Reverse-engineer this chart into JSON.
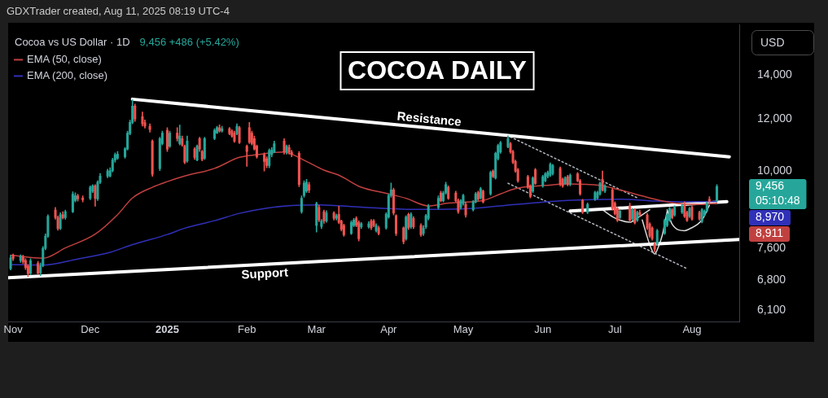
{
  "chart_data": {
    "type": "candlestick",
    "title": "COCOA DAILY",
    "subtitle": "Cocoa vs US Dollar · 1D",
    "ylabel": "USD",
    "x": [
      "2024-10-31",
      "2024-11-01",
      "2024-11-04",
      "2024-11-05",
      "2024-11-06",
      "2024-11-07",
      "2024-11-08",
      "2024-11-11",
      "2024-11-12",
      "2024-11-13",
      "2024-11-14",
      "2024-11-15",
      "2024-11-18",
      "2024-11-19",
      "2024-11-20",
      "2024-11-21",
      "2024-11-22",
      "2024-11-25",
      "2024-11-26",
      "2024-11-27",
      "2024-11-29",
      "2024-12-02",
      "2024-12-03",
      "2024-12-04",
      "2024-12-05",
      "2024-12-06",
      "2024-12-09",
      "2024-12-10",
      "2024-12-11",
      "2024-12-12",
      "2024-12-13",
      "2024-12-16",
      "2024-12-17",
      "2024-12-18",
      "2024-12-19",
      "2024-12-20",
      "2024-12-23",
      "2024-12-24",
      "2024-12-26",
      "2024-12-27",
      "2024-12-30",
      "2024-12-31",
      "2025-01-02",
      "2025-01-03",
      "2025-01-06",
      "2025-01-07",
      "2025-01-08",
      "2025-01-09",
      "2025-01-10",
      "2025-01-13",
      "2025-01-14",
      "2025-01-15",
      "2025-01-16",
      "2025-01-17",
      "2025-01-21",
      "2025-01-22",
      "2025-01-23",
      "2025-01-24",
      "2025-01-27",
      "2025-01-28",
      "2025-01-29",
      "2025-01-30",
      "2025-01-31",
      "2025-02-03",
      "2025-02-04",
      "2025-02-05",
      "2025-02-06",
      "2025-02-07",
      "2025-02-10",
      "2025-02-11",
      "2025-02-12",
      "2025-02-13",
      "2025-02-14",
      "2025-02-18",
      "2025-02-19",
      "2025-02-20",
      "2025-02-21",
      "2025-02-24",
      "2025-02-25",
      "2025-02-26",
      "2025-02-27",
      "2025-02-28",
      "2025-03-03",
      "2025-03-04",
      "2025-03-05",
      "2025-03-06",
      "2025-03-07",
      "2025-03-10",
      "2025-03-11",
      "2025-03-12",
      "2025-03-13",
      "2025-03-14",
      "2025-03-17",
      "2025-03-18",
      "2025-03-19",
      "2025-03-20",
      "2025-03-21",
      "2025-03-24",
      "2025-03-25",
      "2025-03-26",
      "2025-03-27",
      "2025-03-28",
      "2025-03-31",
      "2025-04-01",
      "2025-04-02",
      "2025-04-03",
      "2025-04-04",
      "2025-04-07",
      "2025-04-08",
      "2025-04-09",
      "2025-04-10",
      "2025-04-11",
      "2025-04-14",
      "2025-04-15",
      "2025-04-16",
      "2025-04-17",
      "2025-04-21",
      "2025-04-22",
      "2025-04-23",
      "2025-04-24",
      "2025-04-25",
      "2025-04-28",
      "2025-04-29",
      "2025-04-30",
      "2025-05-01",
      "2025-05-02",
      "2025-05-05",
      "2025-05-06",
      "2025-05-07",
      "2025-05-08",
      "2025-05-09",
      "2025-05-12",
      "2025-05-13",
      "2025-05-14",
      "2025-05-15",
      "2025-05-16",
      "2025-05-19",
      "2025-05-20",
      "2025-05-21",
      "2025-05-22",
      "2025-05-23",
      "2025-05-27",
      "2025-05-28",
      "2025-05-29",
      "2025-05-30",
      "2025-06-02",
      "2025-06-03",
      "2025-06-04",
      "2025-06-05",
      "2025-06-06",
      "2025-06-09",
      "2025-06-10",
      "2025-06-11",
      "2025-06-12",
      "2025-06-13",
      "2025-06-16",
      "2025-06-17",
      "2025-06-18",
      "2025-06-20",
      "2025-06-23",
      "2025-06-24",
      "2025-06-25",
      "2025-06-26",
      "2025-06-27",
      "2025-06-30",
      "2025-07-01",
      "2025-07-02",
      "2025-07-03",
      "2025-07-07",
      "2025-07-08",
      "2025-07-09",
      "2025-07-10",
      "2025-07-11",
      "2025-07-14",
      "2025-07-15",
      "2025-07-16",
      "2025-07-17",
      "2025-07-18",
      "2025-07-21",
      "2025-07-22",
      "2025-07-23",
      "2025-07-24",
      "2025-07-25",
      "2025-07-28",
      "2025-07-29",
      "2025-07-30",
      "2025-07-31",
      "2025-08-01",
      "2025-08-04",
      "2025-08-05",
      "2025-08-06",
      "2025-08-07",
      "2025-08-08",
      "2025-08-11"
    ],
    "ohlc": [
      [
        7075,
        7420,
        7040,
        7350
      ],
      [
        7420,
        7450,
        7280,
        7330
      ],
      [
        7280,
        7430,
        7230,
        7400
      ],
      [
        7380,
        7420,
        7200,
        7250
      ],
      [
        7280,
        7330,
        7050,
        7100
      ],
      [
        7140,
        7180,
        6875,
        6950
      ],
      [
        6960,
        7330,
        6920,
        7280
      ],
      [
        7210,
        7260,
        6930,
        6960
      ],
      [
        6970,
        7220,
        6900,
        7140
      ],
      [
        7150,
        7650,
        7120,
        7600
      ],
      [
        7600,
        8000,
        7560,
        7935
      ],
      [
        7935,
        8560,
        7900,
        8510
      ],
      [
        8700,
        8780,
        8420,
        8470
      ],
      [
        8470,
        8520,
        8100,
        8150
      ],
      [
        8150,
        8620,
        8120,
        8560
      ],
      [
        8560,
        8650,
        8430,
        8470
      ],
      [
        8470,
        8700,
        8420,
        8650
      ],
      [
        8650,
        9280,
        8620,
        9200
      ],
      [
        9000,
        9250,
        8950,
        9150
      ],
      [
        9150,
        9200,
        8980,
        9050
      ],
      [
        9080,
        9150,
        8950,
        9020
      ],
      [
        9070,
        9480,
        9020,
        9430
      ],
      [
        9300,
        9520,
        9250,
        9480
      ],
      [
        9475,
        9520,
        8820,
        9070
      ],
      [
        9050,
        9650,
        9000,
        9600
      ],
      [
        9600,
        9900,
        9550,
        9810
      ],
      [
        9810,
        10050,
        9750,
        9985
      ],
      [
        9810,
        10100,
        9780,
        10000
      ],
      [
        10000,
        10450,
        9950,
        10380
      ],
      [
        10380,
        10650,
        10300,
        10580
      ],
      [
        10450,
        10700,
        10400,
        10600
      ],
      [
        10500,
        10850,
        10450,
        10800
      ],
      [
        10790,
        11500,
        10750,
        11420
      ],
      [
        11400,
        11950,
        11350,
        11860
      ],
      [
        11860,
        12840,
        11800,
        12560
      ],
      [
        12560,
        12650,
        11900,
        12000
      ],
      [
        12100,
        12300,
        11700,
        11800
      ],
      [
        11850,
        11960,
        11620,
        11700
      ],
      [
        11700,
        11800,
        11450,
        11560
      ],
      [
        11100,
        11150,
        9800,
        9870
      ],
      [
        10070,
        11250,
        10000,
        11200
      ],
      [
        11000,
        11500,
        10950,
        11420
      ],
      [
        11530,
        11640,
        10700,
        10790
      ],
      [
        10900,
        11500,
        10850,
        11420
      ],
      [
        11420,
        11640,
        11100,
        11200
      ],
      [
        11000,
        11750,
        10950,
        11300
      ],
      [
        11200,
        11300,
        10900,
        10950
      ],
      [
        10900,
        10950,
        10250,
        10300
      ],
      [
        10350,
        11300,
        10300,
        11100
      ],
      [
        10790,
        10850,
        10400,
        10480
      ],
      [
        10380,
        10950,
        10350,
        10900
      ],
      [
        11200,
        11250,
        10700,
        10790
      ],
      [
        10700,
        10750,
        10350,
        10400
      ],
      [
        10450,
        11250,
        10400,
        11200
      ],
      [
        11200,
        11600,
        11150,
        11530
      ],
      [
        11420,
        11700,
        11400,
        11640
      ],
      [
        11640,
        11760,
        11450,
        11500
      ],
      [
        11500,
        11700,
        11450,
        11600
      ],
      [
        11600,
        11650,
        11350,
        11400
      ],
      [
        11500,
        11560,
        11250,
        11300
      ],
      [
        11420,
        11500,
        11050,
        11100
      ],
      [
        11400,
        11800,
        11350,
        11700
      ],
      [
        11640,
        11700,
        11000,
        11040
      ],
      [
        10900,
        10950,
        10150,
        10700
      ],
      [
        11640,
        11860,
        11000,
        11060
      ],
      [
        11420,
        11500,
        10950,
        11000
      ],
      [
        11200,
        11300,
        10750,
        10790
      ],
      [
        10900,
        10950,
        10450,
        10500
      ],
      [
        10580,
        10650,
        9985,
        10330
      ],
      [
        10430,
        10500,
        10100,
        10180
      ],
      [
        10180,
        10800,
        10100,
        10740
      ],
      [
        10580,
        10850,
        10500,
        10760
      ],
      [
        10680,
        11100,
        10650,
        11000
      ],
      [
        11100,
        11200,
        10600,
        10680
      ],
      [
        10680,
        10950,
        10600,
        10900
      ],
      [
        10850,
        10950,
        10600,
        10680
      ],
      [
        10680,
        10750,
        10500,
        10580
      ],
      [
        10630,
        10700,
        9450,
        9520
      ],
      [
        8650,
        9150,
        8600,
        9070
      ],
      [
        9160,
        9650,
        9100,
        9570
      ],
      [
        9300,
        9700,
        9250,
        9600
      ],
      [
        9520,
        9600,
        9250,
        9330
      ],
      [
        8240,
        8950,
        8050,
        8900
      ],
      [
        8780,
        8850,
        8350,
        8400
      ],
      [
        8210,
        8420,
        8150,
        8370
      ],
      [
        8650,
        8700,
        8300,
        8370
      ],
      [
        8370,
        8680,
        8330,
        8610
      ],
      [
        8610,
        8650,
        8400,
        8450
      ],
      [
        8450,
        8580,
        8400,
        8530
      ],
      [
        8570,
        8820,
        8290,
        8330
      ],
      [
        8370,
        8400,
        8080,
        8130
      ],
      [
        8240,
        8280,
        7930,
        7975
      ],
      [
        8010,
        8380,
        7980,
        8330
      ],
      [
        8240,
        8450,
        8200,
        8400
      ],
      [
        8450,
        8500,
        8200,
        8240
      ],
      [
        8330,
        8380,
        7800,
        7860
      ],
      [
        8200,
        8330,
        8150,
        8290
      ],
      [
        8200,
        8350,
        8160,
        8290
      ],
      [
        8370,
        8420,
        8120,
        8170
      ],
      [
        8370,
        8420,
        8200,
        8240
      ],
      [
        8090,
        8290,
        8050,
        8240
      ],
      [
        8170,
        8220,
        7970,
        8010
      ],
      [
        8170,
        8620,
        8130,
        8570
      ],
      [
        8490,
        9200,
        8450,
        9160
      ],
      [
        9160,
        9570,
        9100,
        9340
      ],
      [
        9340,
        9400,
        8550,
        8610
      ],
      [
        8530,
        8560,
        7950,
        8010
      ],
      [
        8170,
        8200,
        7720,
        7780
      ],
      [
        7860,
        8530,
        7820,
        8490
      ],
      [
        8570,
        8610,
        8120,
        8170
      ],
      [
        8200,
        8620,
        8150,
        8570
      ],
      [
        8450,
        8500,
        8150,
        8200
      ],
      [
        8240,
        8290,
        7930,
        7975
      ],
      [
        8010,
        8240,
        7950,
        8170
      ],
      [
        8200,
        8570,
        8150,
        8530
      ],
      [
        8450,
        8880,
        8400,
        8820
      ],
      [
        8780,
        9150,
        8730,
        9070
      ],
      [
        9245,
        9300,
        8950,
        8990
      ],
      [
        8990,
        9300,
        8950,
        9245
      ],
      [
        9245,
        9600,
        9200,
        9520
      ],
      [
        9430,
        9480,
        9030,
        9070
      ],
      [
        9245,
        9300,
        8950,
        8990
      ],
      [
        8990,
        9050,
        8600,
        8650
      ],
      [
        8780,
        9030,
        8730,
        8990
      ],
      [
        8900,
        9200,
        8850,
        9160
      ],
      [
        8875,
        8950,
        8480,
        8550
      ],
      [
        8710,
        9000,
        8670,
        8955
      ],
      [
        8955,
        9260,
        8920,
        9210
      ],
      [
        9255,
        9300,
        9000,
        9040
      ],
      [
        9080,
        9430,
        9040,
        9385
      ],
      [
        9300,
        9340,
        8920,
        8955
      ],
      [
        9210,
        9985,
        9170,
        9935
      ],
      [
        9985,
        10030,
        9750,
        9790
      ],
      [
        9745,
        10680,
        9700,
        10630
      ],
      [
        10430,
        10980,
        10380,
        10930
      ],
      [
        10680,
        11090,
        10630,
        11040
      ],
      [
        10880,
        11310,
        10840,
        11200
      ],
      [
        11000,
        11050,
        10630,
        10680
      ],
      [
        10700,
        10750,
        10250,
        10300
      ],
      [
        10330,
        10380,
        9940,
        9985
      ],
      [
        10030,
        10080,
        9600,
        9650
      ],
      [
        9790,
        9840,
        9385,
        9430
      ],
      [
        9475,
        9520,
        9080,
        9125
      ],
      [
        9300,
        9790,
        9255,
        9745
      ],
      [
        10030,
        10080,
        9520,
        9560
      ],
      [
        9475,
        9840,
        9430,
        9790
      ],
      [
        9650,
        9935,
        9610,
        9890
      ],
      [
        9790,
        9985,
        9745,
        9935
      ],
      [
        9840,
        10280,
        9790,
        10230
      ],
      [
        9890,
        10230,
        9840,
        10180
      ],
      [
        10080,
        10130,
        9475,
        9520
      ],
      [
        9700,
        9745,
        9430,
        9475
      ],
      [
        9560,
        9790,
        9520,
        9745
      ],
      [
        9790,
        9840,
        9475,
        9520
      ],
      [
        9520,
        9890,
        9475,
        9840
      ],
      [
        9890,
        9935,
        9610,
        9650
      ],
      [
        9650,
        9700,
        9170,
        9210
      ],
      [
        9000,
        9040,
        8590,
        8630
      ],
      [
        8630,
        8920,
        8590,
        8875
      ],
      [
        9040,
        9300,
        9000,
        9255
      ],
      [
        9080,
        9300,
        9040,
        9255
      ],
      [
        9210,
        9610,
        9170,
        9560
      ],
      [
        9700,
        9985,
        9300,
        9340
      ],
      [
        9300,
        9520,
        9250,
        9475
      ],
      [
        9340,
        9400,
        8700,
        8750
      ],
      [
        8915,
        8960,
        8550,
        8590
      ],
      [
        8750,
        8790,
        8350,
        8390
      ],
      [
        8470,
        8710,
        8430,
        8670
      ],
      [
        8830,
        8915,
        8350,
        8390
      ],
      [
        8430,
        8750,
        8390,
        8710
      ],
      [
        8710,
        8750,
        8280,
        8315
      ],
      [
        8390,
        8670,
        8355,
        8630
      ],
      [
        8630,
        8700,
        8500,
        8550
      ],
      [
        8550,
        8600,
        8120,
        8165
      ],
      [
        8280,
        8320,
        7900,
        7940
      ],
      [
        8165,
        8200,
        7820,
        7865
      ],
      [
        7720,
        7760,
        7505,
        7575
      ],
      [
        7720,
        8130,
        7680,
        8090
      ],
      [
        8015,
        8430,
        7980,
        8390
      ],
      [
        8240,
        8590,
        8200,
        8550
      ],
      [
        8390,
        8790,
        8355,
        8750
      ],
      [
        8710,
        8750,
        8430,
        8470
      ],
      [
        8550,
        8830,
        8510,
        8790
      ],
      [
        8630,
        8875,
        8590,
        8830
      ],
      [
        8875,
        8955,
        8470,
        8510
      ],
      [
        8630,
        8670,
        8355,
        8390
      ],
      [
        8510,
        8790,
        8470,
        8750
      ],
      [
        8790,
        8830,
        8390,
        8430
      ],
      [
        8630,
        8670,
        8390,
        8430
      ],
      [
        8355,
        8750,
        8315,
        8710
      ],
      [
        8550,
        8710,
        8510,
        8670
      ],
      [
        8670,
        8955,
        8630,
        8915
      ],
      [
        9040,
        9125,
        8915,
        8970
      ],
      [
        8990,
        9520,
        8960,
        9456
      ]
    ],
    "colors": [
      "#26a69a",
      "#ef5350",
      "#26a69a",
      "#ef5350",
      "#ef5350",
      "#ef5350",
      "#26a69a",
      "#ef5350",
      "#26a69a",
      "#26a69a",
      "#26a69a",
      "#26a69a",
      "#ef5350",
      "#ef5350",
      "#26a69a",
      "#ef5350",
      "#26a69a",
      "#26a69a",
      "#26a69a",
      "#ef5350",
      "#ef5350",
      "#26a69a",
      "#26a69a",
      "#ef5350",
      "#26a69a",
      "#26a69a",
      "#26a69a",
      "#26a69a",
      "#26a69a",
      "#26a69a",
      "#26a69a",
      "#26a69a",
      "#26a69a",
      "#26a69a",
      "#26a69a",
      "#ef5350",
      "#ef5350",
      "#ef5350",
      "#ef5350",
      "#ef5350",
      "#26a69a",
      "#26a69a",
      "#ef5350",
      "#26a69a",
      "#ef5350",
      "#26a69a",
      "#ef5350",
      "#ef5350",
      "#26a69a",
      "#ef5350",
      "#26a69a",
      "#ef5350",
      "#ef5350",
      "#26a69a",
      "#26a69a",
      "#26a69a",
      "#ef5350",
      "#26a69a",
      "#ef5350",
      "#ef5350",
      "#ef5350",
      "#26a69a",
      "#ef5350",
      "#ef5350",
      "#ef5350",
      "#ef5350",
      "#ef5350",
      "#ef5350",
      "#ef5350",
      "#ef5350",
      "#26a69a",
      "#26a69a",
      "#26a69a",
      "#ef5350",
      "#26a69a",
      "#ef5350",
      "#ef5350",
      "#ef5350",
      "#26a69a",
      "#26a69a",
      "#26a69a",
      "#ef5350",
      "#26a69a",
      "#ef5350",
      "#26a69a",
      "#ef5350",
      "#26a69a",
      "#ef5350",
      "#26a69a",
      "#ef5350",
      "#ef5350",
      "#ef5350",
      "#26a69a",
      "#26a69a",
      "#ef5350",
      "#ef5350",
      "#26a69a",
      "#26a69a",
      "#ef5350",
      "#ef5350",
      "#26a69a",
      "#ef5350",
      "#26a69a",
      "#26a69a",
      "#26a69a",
      "#ef5350",
      "#ef5350",
      "#ef5350",
      "#26a69a",
      "#ef5350",
      "#26a69a",
      "#ef5350",
      "#ef5350",
      "#26a69a",
      "#26a69a",
      "#26a69a",
      "#26a69a",
      "#ef5350",
      "#26a69a",
      "#26a69a",
      "#ef5350",
      "#ef5350",
      "#ef5350",
      "#26a69a",
      "#26a69a",
      "#ef5350",
      "#26a69a",
      "#26a69a",
      "#ef5350",
      "#26a69a",
      "#ef5350",
      "#26a69a",
      "#ef5350",
      "#26a69a",
      "#26a69a",
      "#26a69a",
      "#26a69a",
      "#ef5350",
      "#ef5350",
      "#ef5350",
      "#ef5350",
      "#ef5350",
      "#ef5350",
      "#26a69a",
      "#ef5350",
      "#26a69a",
      "#26a69a",
      "#26a69a",
      "#26a69a",
      "#26a69a",
      "#ef5350",
      "#ef5350",
      "#26a69a",
      "#ef5350",
      "#26a69a",
      "#ef5350",
      "#ef5350",
      "#ef5350",
      "#26a69a",
      "#26a69a",
      "#26a69a",
      "#26a69a",
      "#ef5350",
      "#26a69a",
      "#ef5350",
      "#ef5350",
      "#ef5350",
      "#26a69a",
      "#ef5350",
      "#26a69a",
      "#ef5350",
      "#26a69a",
      "#ef5350",
      "#ef5350",
      "#ef5350",
      "#ef5350",
      "#ef5350",
      "#26a69a",
      "#26a69a",
      "#26a69a",
      "#26a69a",
      "#ef5350",
      "#26a69a",
      "#26a69a",
      "#ef5350",
      "#ef5350",
      "#26a69a",
      "#ef5350",
      "#ef5350",
      "#26a69a",
      "#26a69a",
      "#26a69a",
      "#ef5350",
      "#26a69a"
    ],
    "value_labels": [
      null,
      null,
      null,
      null,
      null,
      null,
      null,
      null,
      null,
      null,
      null,
      null,
      null,
      null,
      null,
      null,
      null,
      null,
      null,
      null,
      null,
      null,
      null,
      null,
      null,
      null,
      null,
      null,
      null,
      null,
      null,
      null,
      null,
      null,
      null,
      null,
      null,
      null,
      null,
      null,
      null,
      null,
      null,
      null,
      null,
      null,
      null,
      null,
      null,
      null,
      null,
      null,
      null,
      null,
      null,
      null,
      null,
      null,
      null,
      null,
      null,
      null,
      null,
      null,
      null,
      null,
      null,
      null,
      null,
      null,
      null,
      null,
      null,
      null,
      null,
      null,
      null,
      null,
      null,
      null,
      null,
      null,
      null,
      null,
      null,
      null,
      null,
      null,
      null,
      null,
      null,
      null,
      null,
      null,
      null,
      null,
      null,
      null,
      null,
      null,
      null,
      null,
      null,
      null,
      null,
      null,
      null,
      null,
      null,
      null,
      null,
      null,
      null,
      null,
      null,
      null,
      null,
      null,
      null,
      null,
      null,
      null,
      null,
      null,
      null,
      null,
      null,
      null,
      null,
      null,
      null,
      null,
      null,
      null,
      null,
      null,
      null,
      null,
      null,
      null,
      null,
      null,
      null,
      null,
      null,
      null,
      null,
      null,
      null,
      null,
      null,
      null,
      null,
      null,
      null,
      null,
      null,
      null,
      null,
      null,
      null,
      null,
      null,
      null,
      null,
      null,
      null,
      null,
      null,
      null,
      null,
      null,
      null,
      null,
      null,
      null,
      null,
      null,
      null,
      null,
      null,
      null,
      null,
      null,
      null,
      null,
      null,
      null,
      null,
      null,
      null,
      null,
      null,
      "9,456"
    ],
    "series": [
      {
        "name": "EMA (50, close)",
        "type": "line",
        "color": "#c0403f",
        "x": [
          "2024-10-31",
          "2024-11-13",
          "2024-11-22",
          "2024-12-04",
          "2024-12-13",
          "2024-12-19",
          "2024-12-27",
          "2025-01-02",
          "2025-01-09",
          "2025-01-21",
          "2025-01-31",
          "2025-02-07",
          "2025-02-18",
          "2025-02-21",
          "2025-02-27",
          "2025-03-06",
          "2025-03-12",
          "2025-03-21",
          "2025-03-31",
          "2025-04-08",
          "2025-04-17",
          "2025-04-25",
          "2025-05-02",
          "2025-05-09",
          "2025-05-16",
          "2025-05-22",
          "2025-06-03",
          "2025-06-12",
          "2025-06-25",
          "2025-07-03",
          "2025-07-15",
          "2025-07-25",
          "2025-08-05",
          "2025-08-11"
        ],
        "values": [
          7420,
          7340,
          7610,
          7990,
          8560,
          9080,
          9430,
          9620,
          9810,
          10080,
          10480,
          10580,
          10680,
          10600,
          10330,
          10020,
          9840,
          9430,
          9230,
          9070,
          8830,
          8915,
          8950,
          9000,
          9210,
          9385,
          9490,
          9540,
          9490,
          9340,
          9080,
          8915,
          8875,
          8911
        ]
      },
      {
        "name": "EMA (200, close)",
        "type": "line",
        "color": "#3030b8",
        "x": [
          "2024-10-31",
          "2024-11-13",
          "2024-11-27",
          "2024-12-10",
          "2024-12-19",
          "2025-01-02",
          "2025-01-09",
          "2025-01-21",
          "2025-01-31",
          "2025-02-11",
          "2025-02-21",
          "2025-03-04",
          "2025-03-21",
          "2025-04-11",
          "2025-05-02",
          "2025-05-22",
          "2025-06-12",
          "2025-06-25",
          "2025-07-03",
          "2025-07-15",
          "2025-07-25",
          "2025-08-11"
        ],
        "values": [
          7175,
          7165,
          7320,
          7495,
          7700,
          7980,
          8160,
          8380,
          8600,
          8760,
          8840,
          8860,
          8790,
          8720,
          8740,
          8875,
          9000,
          9030,
          9040,
          8990,
          8960,
          8970
        ]
      },
      {
        "type": "line",
        "color": "#ffffff",
        "x": [
          "2024-12-19",
          "2025-08-16"
        ],
        "values": [
          12870,
          10500
        ]
      },
      {
        "type": "line",
        "color": "#ffffff",
        "x": [
          "2024-10-30",
          "2025-08-20"
        ],
        "values": [
          6850,
          7840
        ]
      },
      {
        "type": "line",
        "color": "#ffffff",
        "x": [
          "2025-06-13",
          "2025-08-15"
        ],
        "values": [
          8670,
          8960
        ]
      },
      {
        "type": "line",
        "color": "#b2b5be",
        "line_style": "dotted",
        "x": [
          "2025-05-20",
          "2025-07-10"
        ],
        "values": [
          11265,
          9083
        ]
      },
      {
        "type": "line",
        "color": "#b2b5be",
        "line_style": "dotted",
        "x": [
          "2025-05-19",
          "2025-07-30"
        ],
        "values": [
          9565,
          7075
        ]
      },
      {
        "type": "line",
        "color": "#d9d9d9",
        "x": [
          "2025-06-26",
          "2025-07-01",
          "2025-07-07",
          "2025-07-10",
          "2025-07-15"
        ],
        "values": [
          8710,
          8460,
          8335,
          8460,
          8710
        ]
      },
      {
        "type": "line",
        "color": "#d9d9d9",
        "x": [
          "2025-07-12",
          "2025-07-15",
          "2025-07-17",
          "2025-07-18",
          "2025-07-20",
          "2025-07-22"
        ],
        "values": [
          8400,
          7700,
          7450,
          7560,
          7950,
          8660
        ]
      },
      {
        "type": "line",
        "color": "#d9d9d9",
        "x": [
          "2025-07-22",
          "2025-07-24",
          "2025-07-29",
          "2025-07-31",
          "2025-08-05",
          "2025-08-08"
        ],
        "values": [
          8710,
          8280,
          8090,
          8140,
          8400,
          8850
        ]
      }
    ],
    "xlim": [
      "2024-10-30",
      "2025-08-20"
    ],
    "ylim": [
      5870,
      16740
    ],
    "xticks": [
      {
        "value": "2024-11-01",
        "label": "Nov"
      },
      {
        "value": "2024-12-02",
        "label": "Dec"
      },
      {
        "value": "2025-01-02",
        "label": "2025"
      },
      {
        "value": "2025-02-03",
        "label": "Feb"
      },
      {
        "value": "2025-03-03",
        "label": "Mar"
      },
      {
        "value": "2025-04-01",
        "label": "Apr"
      },
      {
        "value": "2025-05-01",
        "label": "May"
      },
      {
        "value": "2025-06-02",
        "label": "Jun"
      },
      {
        "value": "2025-07-01",
        "label": "Jul"
      },
      {
        "value": "2025-08-01",
        "label": "Aug"
      }
    ],
    "yticks": [
      {
        "value": 6100,
        "label": "6,100"
      },
      {
        "value": 6800,
        "label": "6,800"
      },
      {
        "value": 7600,
        "label": "7,600"
      },
      {
        "value": 10000,
        "label": "10,000"
      },
      {
        "value": 12000,
        "label": "12,000"
      },
      {
        "value": 14000,
        "label": "14,000"
      }
    ],
    "log": true,
    "legend": "top left",
    "annotations": [
      "GDXTrader created, Aug 11, 2025 08:19 UTC-4",
      "9,456 +486 (+5.42%)",
      "05:10:48",
      "8,970",
      "8,911",
      {
        "text": "Resistance",
        "x": "2025-04-17",
        "y": 11635
      },
      {
        "text": "Support",
        "x": "2025-02-10",
        "y": 7182
      }
    ]
  }
}
